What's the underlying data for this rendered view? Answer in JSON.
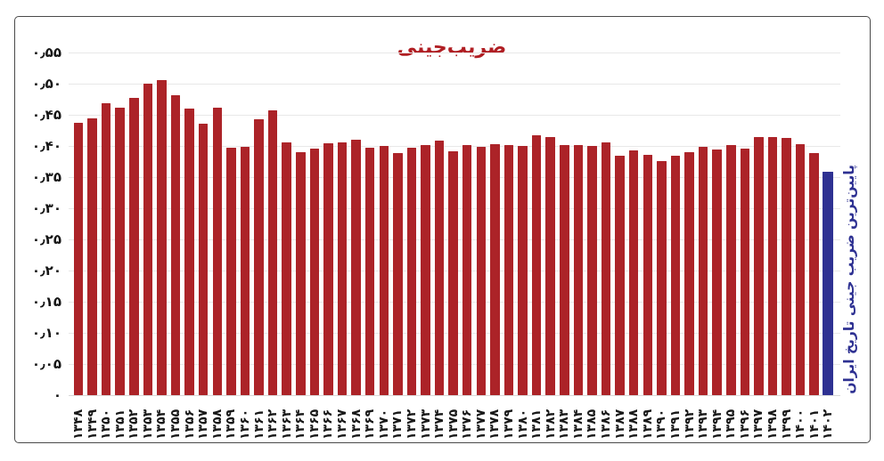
{
  "chart_data": {
    "type": "bar",
    "title": "ضریب‌جینی",
    "title_color": "#b01e23",
    "categories": [
      "۱۳۴۸",
      "۱۳۴۹",
      "۱۳۵۰",
      "۱۳۵۱",
      "۱۳۵۲",
      "۱۳۵۳",
      "۱۳۵۴",
      "۱۳۵۵",
      "۱۳۵۶",
      "۱۳۵۷",
      "۱۳۵۸",
      "۱۳۵۹",
      "۱۳۶۰",
      "۱۳۶۱",
      "۱۳۶۲",
      "۱۳۶۳",
      "۱۳۶۴",
      "۱۳۶۵",
      "۱۳۶۶",
      "۱۳۶۷",
      "۱۳۶۸",
      "۱۳۶۹",
      "۱۳۷۰",
      "۱۳۷۱",
      "۱۳۷۲",
      "۱۳۷۳",
      "۱۳۷۴",
      "۱۳۷۵",
      "۱۳۷۶",
      "۱۳۷۷",
      "۱۳۷۸",
      "۱۳۷۹",
      "۱۳۸۰",
      "۱۳۸۱",
      "۱۳۸۲",
      "۱۳۸۳",
      "۱۳۸۴",
      "۱۳۸۵",
      "۱۳۸۶",
      "۱۳۸۷",
      "۱۳۸۸",
      "۱۳۸۹",
      "۱۳۹۰",
      "۱۳۹۱",
      "۱۳۹۲",
      "۱۳۹۳",
      "۱۳۹۴",
      "۱۳۹۵",
      "۱۳۹۶",
      "۱۳۹۷",
      "۱۳۹۸",
      "۱۳۹۹",
      "۱۴۰۰",
      "۱۴۰۱",
      "۱۴۰۲"
    ],
    "values": [
      0.437,
      0.445,
      0.469,
      0.462,
      0.477,
      0.5,
      0.506,
      0.482,
      0.46,
      0.436,
      0.462,
      0.397,
      0.398,
      0.443,
      0.457,
      0.406,
      0.39,
      0.396,
      0.405,
      0.406,
      0.41,
      0.397,
      0.4,
      0.389,
      0.397,
      0.401,
      0.409,
      0.391,
      0.402,
      0.398,
      0.403,
      0.401,
      0.4,
      0.417,
      0.415,
      0.401,
      0.402,
      0.4,
      0.406,
      0.385,
      0.393,
      0.386,
      0.376,
      0.384,
      0.39,
      0.399,
      0.394,
      0.402,
      0.396,
      0.414,
      0.414,
      0.413,
      0.403,
      0.388,
      0.358
    ],
    "xlabel": "",
    "ylabel": "",
    "ylim": [
      0,
      0.55
    ],
    "ytick_step": 0.05,
    "ytick_labels_bottom_to_top": [
      "۰",
      "۰٫۰۵",
      "۰٫۱۰",
      "۰٫۱۵",
      "۰٫۲۰",
      "۰٫۲۵",
      "۰٫۳۰",
      "۰٫۳۵",
      "۰٫۴۰",
      "۰٫۴۵",
      "۰٫۵۰",
      "۰٫۵۵"
    ],
    "grid": true,
    "legend": "none",
    "bar_color": "#ac2328",
    "highlight_color": "#2e3192",
    "highlight_index": 54,
    "annotation": "پایین‌ترین ضریب جینی تاریخ ایران",
    "annotation_color": "#2e3192"
  }
}
